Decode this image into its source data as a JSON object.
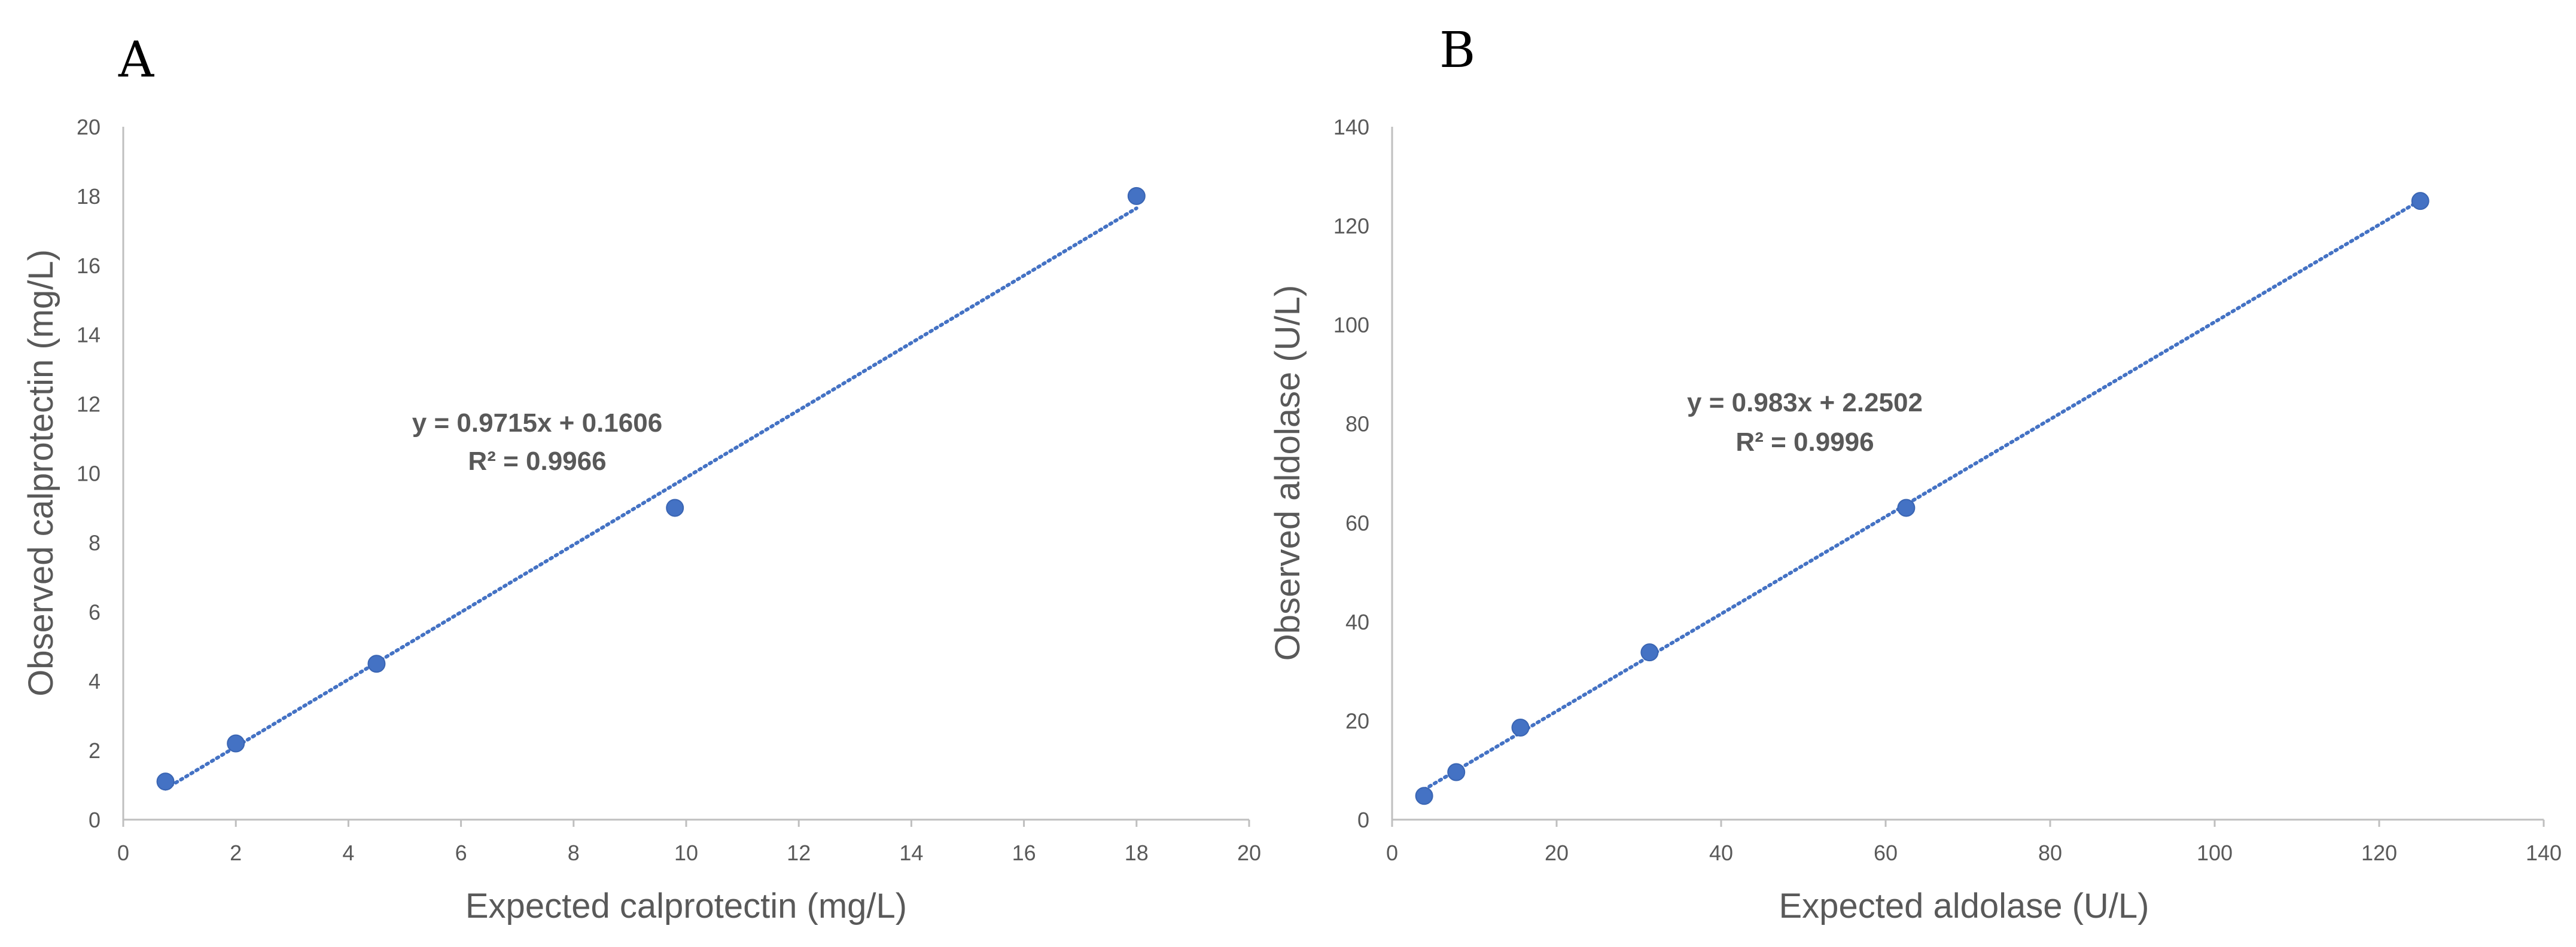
{
  "chart_data": [
    {
      "type": "scatter",
      "panel_label": "A",
      "title": "",
      "xlabel": "Expected  calprotectin (mg/L)",
      "ylabel": "Observed calprotectin (mg/L)",
      "xlim": [
        0,
        20
      ],
      "ylim": [
        0,
        20
      ],
      "xticks": [
        0,
        2,
        4,
        6,
        8,
        10,
        12,
        14,
        16,
        18,
        20
      ],
      "yticks": [
        0,
        2,
        4,
        6,
        8,
        10,
        12,
        14,
        16,
        18,
        20
      ],
      "series": [
        {
          "name": "Observed calprotectin",
          "color": "#4472c4",
          "x": [
            0.75,
            2.0,
            4.5,
            9.8,
            18.0
          ],
          "y": [
            1.1,
            2.2,
            4.5,
            9.0,
            18.0
          ]
        }
      ],
      "trendline": {
        "slope": 0.9715,
        "intercept": 0.1606,
        "x_range": [
          0.75,
          18.0
        ],
        "style": "dotted",
        "color": "#4472c4",
        "equation": "y = 0.9715x + 0.1606",
        "r_squared": "R² = 0.9966"
      },
      "grid": false
    },
    {
      "type": "scatter",
      "panel_label": "B",
      "title": "",
      "xlabel": "Expected aldolase (U/L)",
      "ylabel": "Observed aldolase (U/L)",
      "xlim": [
        0,
        140
      ],
      "ylim": [
        0,
        140
      ],
      "xticks": [
        0,
        20,
        40,
        60,
        80,
        100,
        120,
        140
      ],
      "yticks": [
        0,
        20,
        40,
        60,
        80,
        100,
        120,
        140
      ],
      "series": [
        {
          "name": "Observed aldolase",
          "color": "#4472c4",
          "x": [
            3.9,
            7.8,
            15.6,
            31.3,
            62.5,
            125.0
          ],
          "y": [
            4.8,
            9.6,
            18.6,
            33.8,
            63.0,
            125.0
          ]
        }
      ],
      "trendline": {
        "slope": 0.983,
        "intercept": 2.2502,
        "x_range": [
          3.9,
          125.0
        ],
        "style": "dotted",
        "color": "#4472c4",
        "equation": "y = 0.983x + 2.2502",
        "r_squared": "R² = 0.9996"
      },
      "grid": false
    }
  ]
}
